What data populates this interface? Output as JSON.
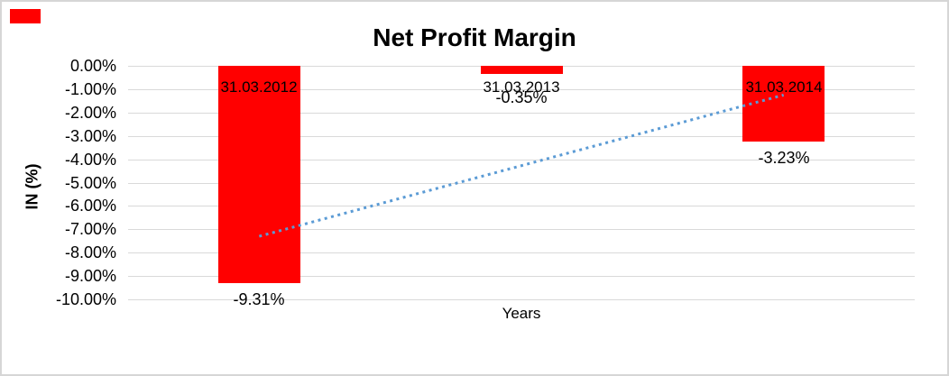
{
  "window": {
    "background": "#ffffff",
    "frame_border_color": "#d6d6d6",
    "red_marker_color": "#ff0000"
  },
  "chart_data": {
    "type": "bar",
    "title": "Net Profit Margin",
    "xlabel": "Years",
    "ylabel": "IN (%)",
    "categories": [
      "31.03.2012",
      "31.03.2013",
      "31.03.2014"
    ],
    "values": [
      -9.31,
      -0.35,
      -3.23
    ],
    "data_labels": [
      "-9.31%",
      "-0.35%",
      "-3.23%"
    ],
    "bar_color": "#ff0000",
    "ylim": [
      -10,
      0
    ],
    "y_tick_values": [
      0,
      -1,
      -2,
      -3,
      -4,
      -5,
      -6,
      -7,
      -8,
      -9,
      -10
    ],
    "y_tick_labels": [
      "0.00%",
      "-1.00%",
      "-2.00%",
      "-3.00%",
      "-4.00%",
      "-5.00%",
      "-6.00%",
      "-7.00%",
      "-8.00%",
      "-9.00%",
      "-10.00%"
    ],
    "grid": true,
    "gridline_color": "#d9d9d9",
    "legend": "none",
    "trendline": {
      "kind": "linear",
      "style": "dotted",
      "color": "#5b9bd5",
      "start_value": -7.3,
      "end_value": -1.25
    }
  }
}
